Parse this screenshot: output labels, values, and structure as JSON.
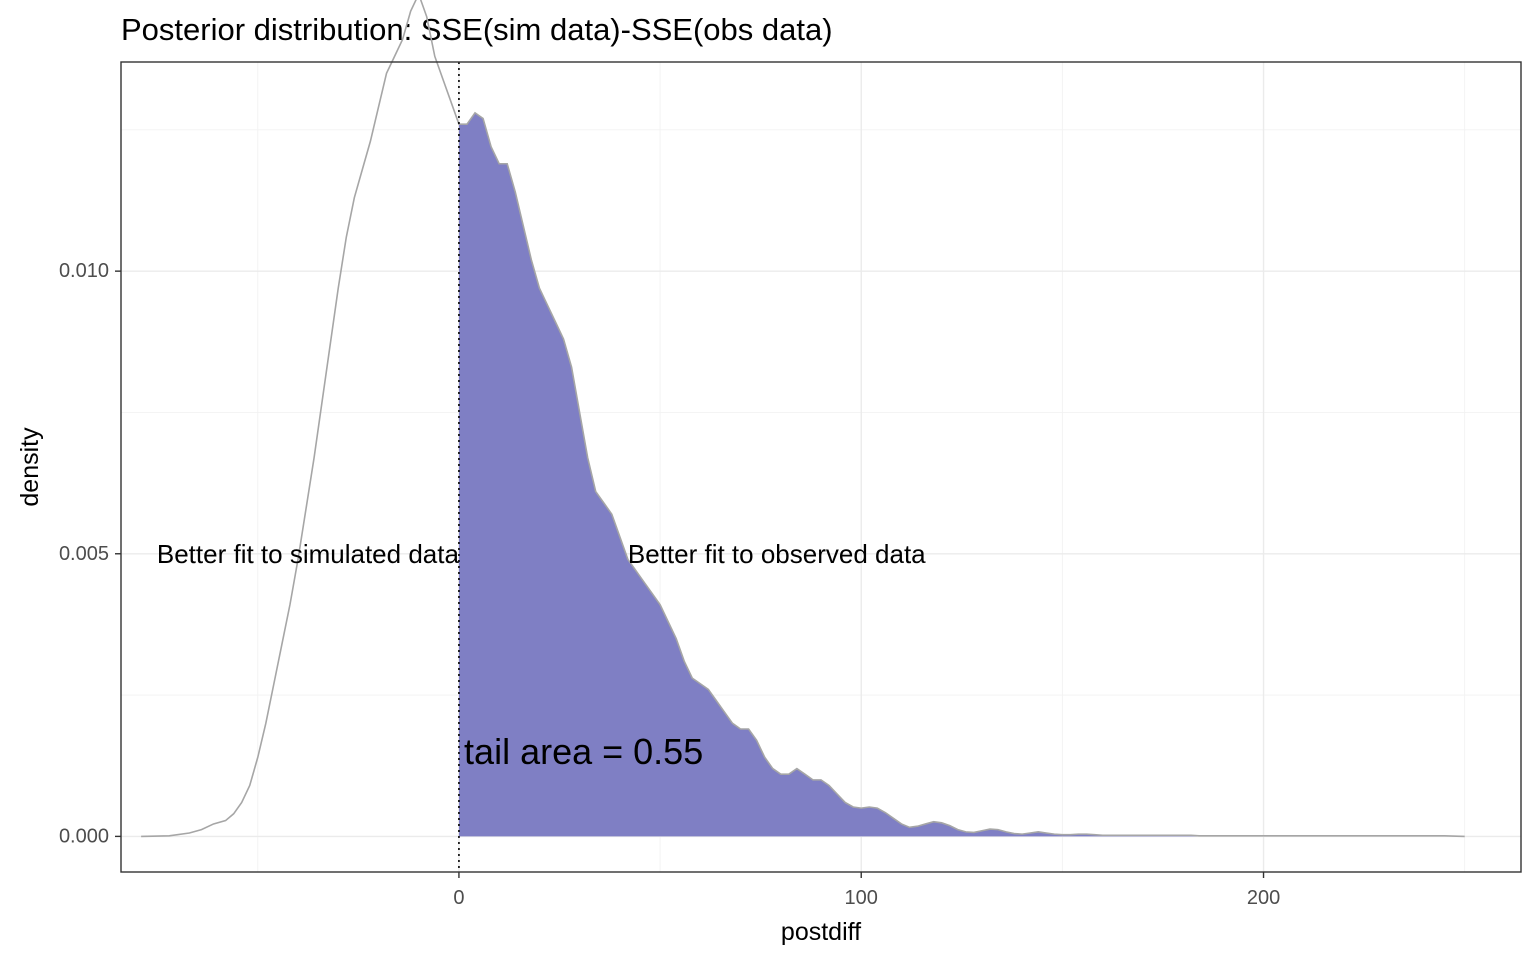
{
  "chart_data": {
    "type": "area",
    "title": "Posterior distribution: SSE(sim data)-SSE(obs data)",
    "xlabel": "postdiff",
    "ylabel": "density",
    "xlim": [
      -84,
      264
    ],
    "ylim": [
      -0.00063,
      0.0137
    ],
    "x_ticks": [
      0,
      100,
      200
    ],
    "x_tick_labels": [
      "0",
      "100",
      "200"
    ],
    "y_ticks": [
      0.0,
      0.005,
      0.01
    ],
    "y_tick_labels": [
      "0.000",
      "0.005",
      "0.010"
    ],
    "grid": true,
    "reference_line": {
      "x": 0,
      "style": "dotted"
    },
    "series": [
      {
        "x": [
          -79,
          -72,
          -67,
          -64,
          -61,
          -58,
          -56,
          -54,
          -52,
          -50,
          -48,
          -46,
          -44,
          -42,
          -40,
          -38,
          -36,
          -34,
          -32,
          -30,
          -28,
          -26,
          -24,
          -22,
          -20,
          -18,
          -16,
          -14,
          -12,
          -10,
          -8,
          -6,
          -4,
          -2,
          0,
          2,
          4,
          6,
          8,
          10,
          12,
          14,
          16,
          18,
          20,
          22,
          24,
          26,
          28,
          30,
          32,
          34,
          36,
          38,
          40,
          42,
          44,
          46,
          48,
          50,
          52,
          54,
          56,
          58,
          60,
          62,
          64,
          66,
          68,
          70,
          72,
          74,
          76,
          78,
          80,
          82,
          84,
          86,
          88,
          90,
          92,
          94,
          96,
          98,
          100,
          102,
          104,
          106,
          108,
          110,
          112,
          114,
          116,
          118,
          120,
          122,
          124,
          126,
          128,
          130,
          132,
          134,
          136,
          138,
          140,
          142,
          144,
          146,
          148,
          150,
          152,
          154,
          156,
          158,
          160,
          162,
          164,
          166,
          168,
          170,
          172,
          174,
          176,
          178,
          180,
          182,
          184,
          186,
          188,
          190,
          195,
          200,
          205,
          210,
          215,
          220,
          225,
          230,
          235,
          240,
          245,
          250
        ],
        "values": [
          0.0,
          1e-05,
          6e-05,
          0.00012,
          0.00022,
          0.00028,
          0.0004,
          0.0006,
          0.0009,
          0.0014,
          0.002,
          0.0027,
          0.0034,
          0.0041,
          0.0049,
          0.0058,
          0.0067,
          0.0077,
          0.0087,
          0.0097,
          0.0106,
          0.0113,
          0.0118,
          0.0123,
          0.0129,
          0.0135,
          0.0138,
          0.0141,
          0.0146,
          0.0149,
          0.0145,
          0.0138,
          0.0134,
          0.013,
          0.0126,
          0.0126,
          0.0128,
          0.0127,
          0.0122,
          0.0119,
          0.0119,
          0.0114,
          0.0108,
          0.0102,
          0.0097,
          0.0094,
          0.0091,
          0.0088,
          0.0083,
          0.0075,
          0.0067,
          0.0061,
          0.0059,
          0.0057,
          0.0053,
          0.0049,
          0.0047,
          0.0045,
          0.0043,
          0.0041,
          0.0038,
          0.0035,
          0.0031,
          0.0028,
          0.0027,
          0.0026,
          0.0024,
          0.0022,
          0.002,
          0.0019,
          0.0019,
          0.0017,
          0.0014,
          0.0012,
          0.0011,
          0.0011,
          0.0012,
          0.0011,
          0.001,
          0.001,
          0.0009,
          0.00075,
          0.0006,
          0.00052,
          0.0005,
          0.00052,
          0.0005,
          0.00042,
          0.00032,
          0.00022,
          0.00016,
          0.00018,
          0.00022,
          0.00026,
          0.00024,
          0.00019,
          0.00012,
          8e-05,
          7e-05,
          0.0001,
          0.00013,
          0.00012,
          8e-05,
          5e-05,
          4e-05,
          6e-05,
          8e-05,
          6e-05,
          4e-05,
          3e-05,
          3e-05,
          4e-05,
          4e-05,
          3e-05,
          2e-05,
          2e-05,
          2e-05,
          2e-05,
          2e-05,
          2e-05,
          2e-05,
          2e-05,
          2e-05,
          2e-05,
          2e-05,
          2e-05,
          1e-05,
          1e-05,
          1e-05,
          1e-05,
          1e-05,
          1e-05,
          1e-05,
          1e-05,
          1e-05,
          1e-05,
          1e-05,
          1e-05,
          1e-05,
          1e-05,
          1e-05,
          0.0
        ]
      }
    ],
    "annotations": [
      {
        "text": "Better fit to simulated data",
        "x": 0,
        "y": 0.005,
        "anchor": "end"
      },
      {
        "text": "Better fit to observed data",
        "x": 42,
        "y": 0.005,
        "anchor": "start"
      },
      {
        "text": "tail area =  0.55",
        "x": 31,
        "y": 0.0015,
        "anchor": "middle"
      }
    ],
    "shaded_region": {
      "from": 0,
      "to": 250,
      "color": "#7f7fc4"
    },
    "curve_color": "#a6a6a6"
  }
}
